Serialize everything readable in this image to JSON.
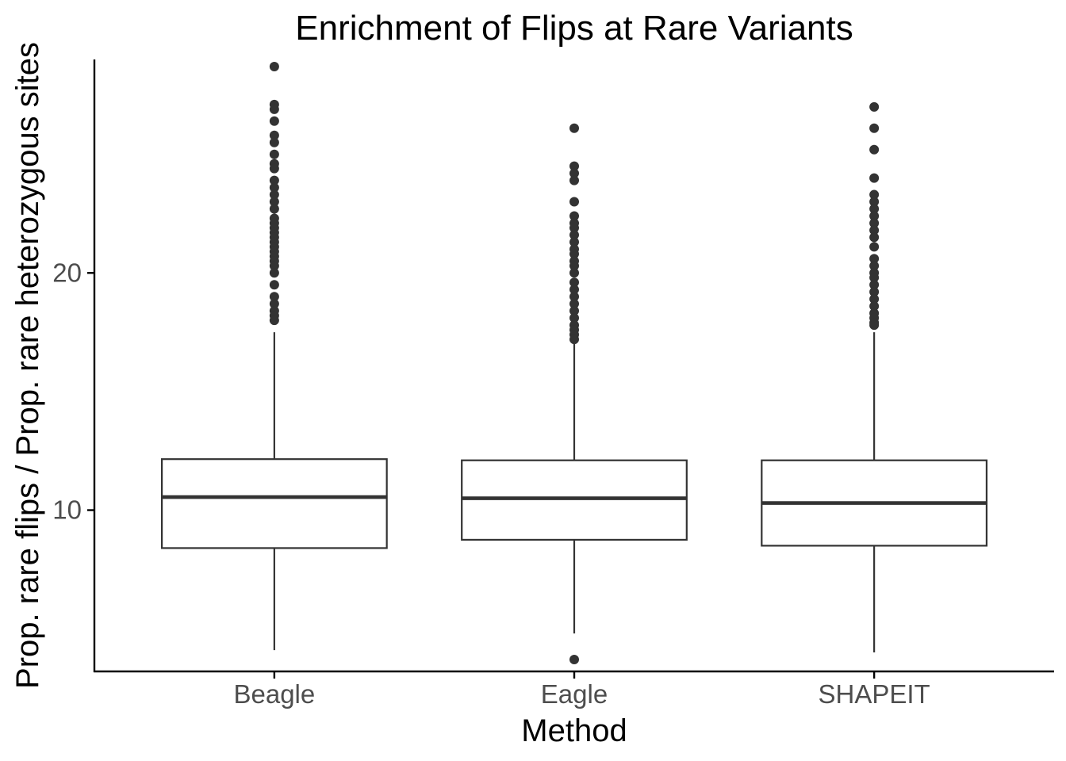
{
  "chart_data": {
    "type": "boxplot",
    "title": "Enrichment of Flips at Rare Variants",
    "xlabel": "Method",
    "ylabel": "Prop. rare flips / Prop. rare heterozygous sites",
    "categories": [
      "Beagle",
      "Eagle",
      "SHAPEIT"
    ],
    "ylim": [
      3.2,
      29.0
    ],
    "yticks": [
      10,
      20
    ],
    "grid": false,
    "legend": "none",
    "colors": {
      "box_stroke": "#333333",
      "box_fill": "#ffffff",
      "axis": "#000000",
      "tick_label": "#4d4d4d"
    },
    "boxes": [
      {
        "name": "Beagle",
        "whisker_low": 4.1,
        "q1": 8.4,
        "median": 10.55,
        "q3": 12.15,
        "whisker_high": 17.5,
        "outliers": [
          28.7,
          27.1,
          26.9,
          26.4,
          25.8,
          25.5,
          25.0,
          24.6,
          24.4,
          23.9,
          23.6,
          23.3,
          23.0,
          22.7,
          22.3,
          22.1,
          21.9,
          21.7,
          21.5,
          21.3,
          21.1,
          20.9,
          20.7,
          20.5,
          20.3,
          20.0,
          19.5,
          19.0,
          18.7,
          18.4,
          18.2,
          18.0
        ]
      },
      {
        "name": "Eagle",
        "whisker_low": 4.8,
        "q1": 8.75,
        "median": 10.5,
        "q3": 12.1,
        "whisker_high": 17.1,
        "outliers": [
          26.1,
          24.5,
          24.2,
          23.9,
          23.0,
          22.4,
          22.1,
          21.9,
          21.6,
          21.3,
          21.0,
          20.8,
          20.5,
          20.3,
          20.0,
          19.6,
          19.3,
          19.0,
          18.7,
          18.4,
          18.1,
          17.8,
          17.6,
          17.4,
          17.2,
          3.7
        ]
      },
      {
        "name": "SHAPEIT",
        "whisker_low": 4.0,
        "q1": 8.5,
        "median": 10.3,
        "q3": 12.1,
        "whisker_high": 17.5,
        "outliers": [
          27.0,
          26.1,
          25.2,
          24.0,
          23.3,
          23.0,
          22.7,
          22.4,
          22.1,
          21.8,
          21.5,
          21.1,
          20.6,
          20.3,
          20.0,
          19.8,
          19.5,
          19.2,
          18.9,
          18.6,
          18.3,
          18.1,
          17.9,
          17.8
        ]
      }
    ]
  }
}
